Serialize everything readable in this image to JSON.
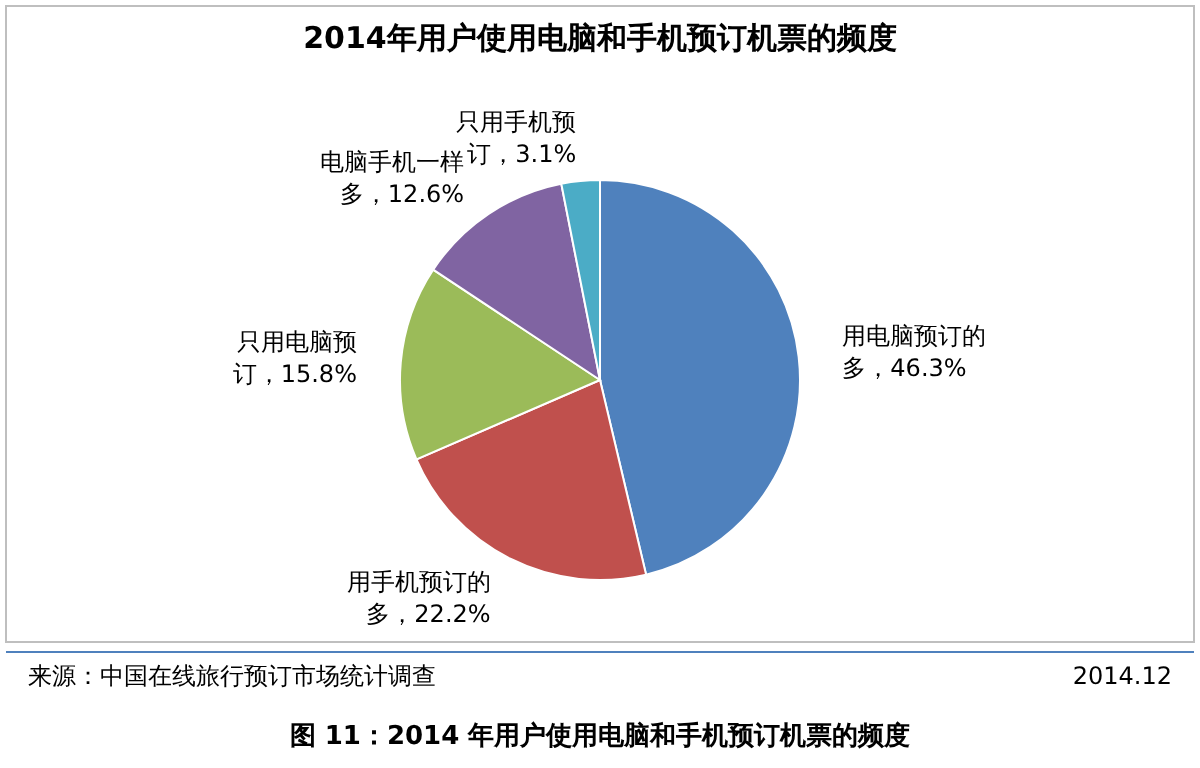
{
  "chart_data": {
    "type": "pie",
    "title": "2014年用户使用电脑和手机预订机票的频度",
    "categories": [
      "用电脑预订的多",
      "用手机预订的多",
      "只用电脑预订",
      "电脑手机一样多",
      "只用手机预订"
    ],
    "legend": false,
    "values": [
      46.3,
      22.2,
      15.8,
      12.6,
      3.1
    ],
    "value_labels": [
      "，46.3%",
      "，22.2%",
      "，15.8%",
      "，12.6%",
      "，3.1%"
    ],
    "colors": [
      "#4f81bd",
      "#c0504d",
      "#9bbb59",
      "#8064a2",
      "#4bacc6"
    ],
    "annotations": [
      "来源：中国在线旅行预订市场统计调查",
      "2014.12",
      "图 11：2014 年用户使用电脑和手机预订机票的频度"
    ]
  }
}
